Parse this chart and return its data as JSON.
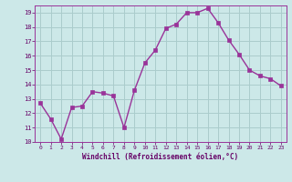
{
  "x": [
    0,
    1,
    2,
    3,
    4,
    5,
    6,
    7,
    8,
    9,
    10,
    11,
    12,
    13,
    14,
    15,
    16,
    17,
    18,
    19,
    20,
    21,
    22,
    23
  ],
  "y": [
    12.7,
    11.6,
    10.2,
    12.4,
    12.5,
    13.5,
    13.4,
    13.2,
    11.0,
    13.6,
    15.5,
    16.4,
    17.9,
    18.2,
    19.0,
    19.0,
    19.3,
    18.3,
    17.1,
    16.1,
    15.0,
    14.6,
    14.4,
    13.9
  ],
  "line_color": "#993399",
  "marker_color": "#993399",
  "bg_color": "#cce8e8",
  "grid_color": "#aacccc",
  "xlabel": "Windchill (Refroidissement éolien,°C)",
  "ylim": [
    10,
    19.5
  ],
  "xlim": [
    -0.5,
    23.5
  ],
  "yticks": [
    10,
    11,
    12,
    13,
    14,
    15,
    16,
    17,
    18,
    19
  ],
  "xticks": [
    0,
    1,
    2,
    3,
    4,
    5,
    6,
    7,
    8,
    9,
    10,
    11,
    12,
    13,
    14,
    15,
    16,
    17,
    18,
    19,
    20,
    21,
    22,
    23
  ]
}
